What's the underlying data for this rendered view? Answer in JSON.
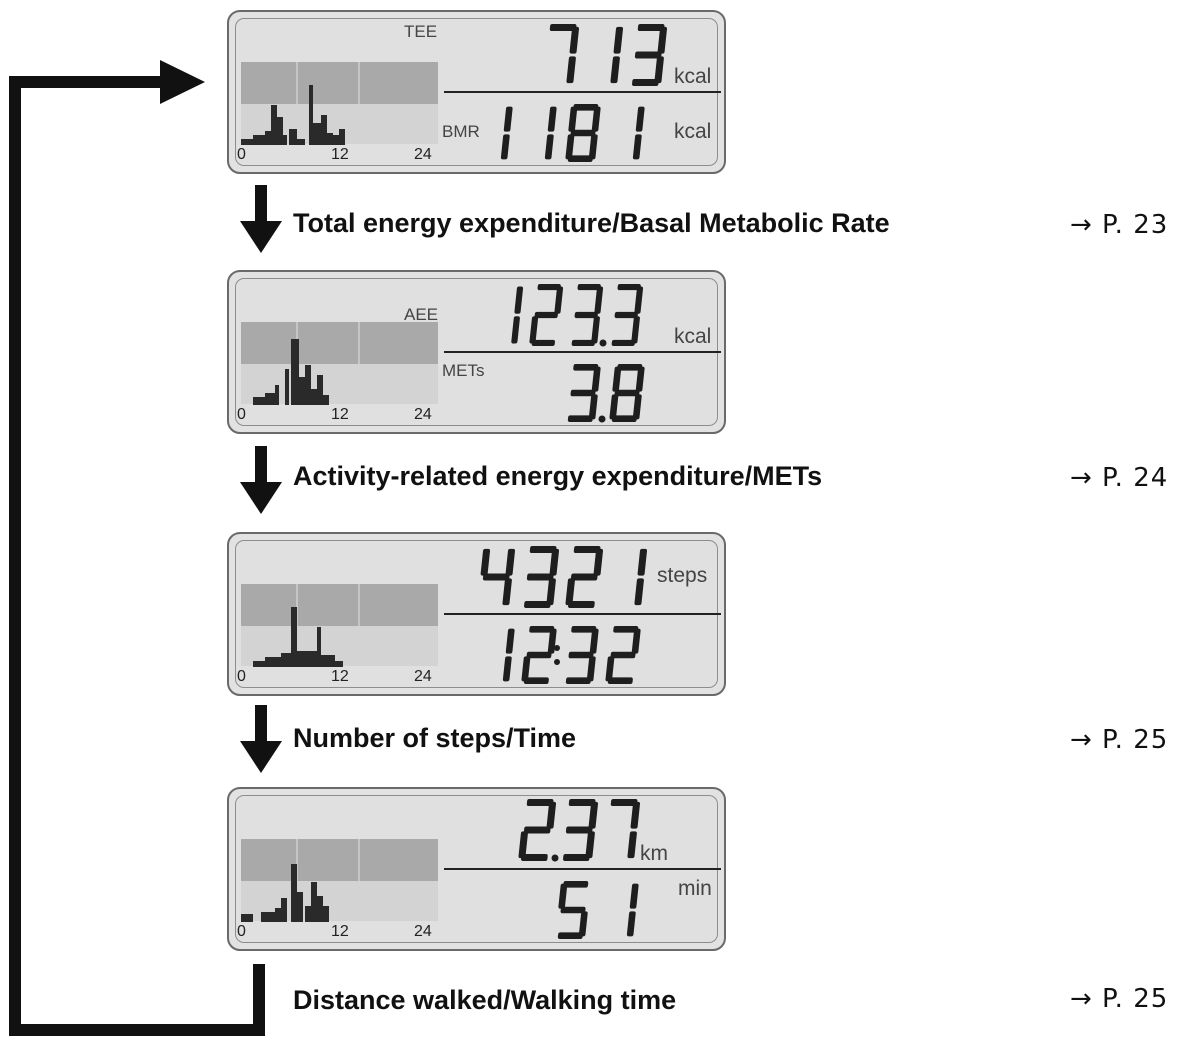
{
  "panels": [
    {
      "label_top": "TEE",
      "value_top": "713",
      "unit_top": "kcal",
      "label_bottom": "BMR",
      "value_bottom": "1181",
      "unit_bottom": "kcal",
      "axis_ticks": [
        "0",
        "12",
        "24"
      ]
    },
    {
      "label_top": "AEE",
      "value_top": "123.3",
      "unit_top": "kcal",
      "label_bottom": "METs",
      "value_bottom": "3.8",
      "unit_bottom": "",
      "axis_ticks": [
        "0",
        "12",
        "24"
      ]
    },
    {
      "label_top": "",
      "value_top": "4321",
      "unit_top": "steps",
      "label_bottom": "",
      "value_bottom": "12:32",
      "unit_bottom": "",
      "axis_ticks": [
        "0",
        "12",
        "24"
      ]
    },
    {
      "label_top": "",
      "value_top": "2.37",
      "unit_top": "km",
      "label_bottom": "",
      "value_bottom": "51",
      "unit_bottom": "min",
      "axis_ticks": [
        "0",
        "12",
        "24"
      ]
    }
  ],
  "steps": [
    {
      "caption": "Total energy expenditure/Basal Metabolic Rate",
      "page_ref": "→ P. 23"
    },
    {
      "caption": "Activity-related energy expenditure/METs",
      "page_ref": "→ P. 24"
    },
    {
      "caption": "Number of steps/Time",
      "page_ref": "→ P. 25"
    },
    {
      "caption": "Distance walked/Walking time",
      "page_ref": "→ P. 25"
    }
  ],
  "colors": {
    "lcd_background": "#e2e2e2",
    "lcd_segment": "#1e1e1e",
    "lcd_grid": "#a8a8a8",
    "bars": "#2a2a2a",
    "arrow": "#111111"
  }
}
